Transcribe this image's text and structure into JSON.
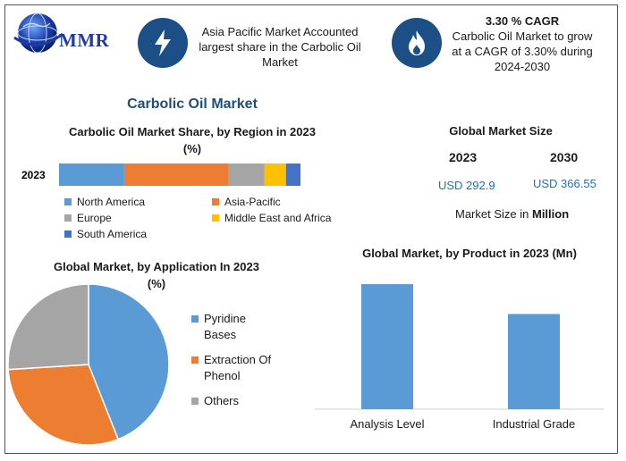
{
  "logo": {
    "text": "MMR"
  },
  "banners": [
    {
      "icon": "lightning-bolt-icon",
      "lines": [
        "Asia Pacific Market Accounted",
        "largest share in the Carbolic Oil",
        "Market"
      ]
    },
    {
      "icon": "flame-icon",
      "heading": "3.30 % CAGR",
      "lines": [
        "Carbolic Oil Market to grow",
        "at a CAGR of 3.30% during",
        "2024-2030"
      ]
    }
  ],
  "main_title": "Carbolic Oil Market",
  "region_section": {
    "title_line1": "Carbolic Oil Market Share, by Region in 2023",
    "title_line2": "(%)"
  },
  "global_size": {
    "title": "Global Market Size",
    "years": [
      "2023",
      "2030"
    ],
    "values": [
      "USD 292.9",
      "USD 366.55"
    ],
    "note_prefix": "Market Size in ",
    "note_bold": "Million"
  },
  "application_section": {
    "title_line1": "Global Market, by Application In 2023",
    "title_line2": "(%)"
  },
  "product_section": {
    "title": "Global Market, by Product in 2023 (Mn)"
  },
  "chart_data": [
    {
      "type": "bar",
      "orientation": "horizontal-stacked",
      "title": "Carbolic Oil Market Share, by Region in 2023 (%)",
      "categories": [
        "2023"
      ],
      "series": [
        {
          "name": "North America",
          "values": [
            27
          ],
          "color": "#5b9bd5"
        },
        {
          "name": "Asia-Pacific",
          "values": [
            43
          ],
          "color": "#ed7d31"
        },
        {
          "name": "Europe",
          "values": [
            15
          ],
          "color": "#a5a5a5"
        },
        {
          "name": "Middle East and Africa",
          "values": [
            9
          ],
          "color": "#ffc000"
        },
        {
          "name": "South America",
          "values": [
            6
          ],
          "color": "#4472c4"
        }
      ],
      "xlim": [
        0,
        100
      ],
      "legend": "bottom"
    },
    {
      "type": "pie",
      "title": "Global Market, by Application In 2023 (%)",
      "labels": [
        "Pyridine Bases",
        "Extraction Of Phenol",
        "Others"
      ],
      "values": [
        44,
        30,
        26
      ],
      "colors": [
        "#5b9bd5",
        "#ed7d31",
        "#a5a5a5"
      ],
      "legend": "right"
    },
    {
      "type": "bar",
      "title": "Global Market, by Product in 2023 (Mn)",
      "categories": [
        "Analysis Level",
        "Industrial Grade"
      ],
      "values": [
        155,
        118
      ],
      "ylim": [
        0,
        175
      ],
      "color": "#5b9bd5",
      "grid": false
    }
  ]
}
